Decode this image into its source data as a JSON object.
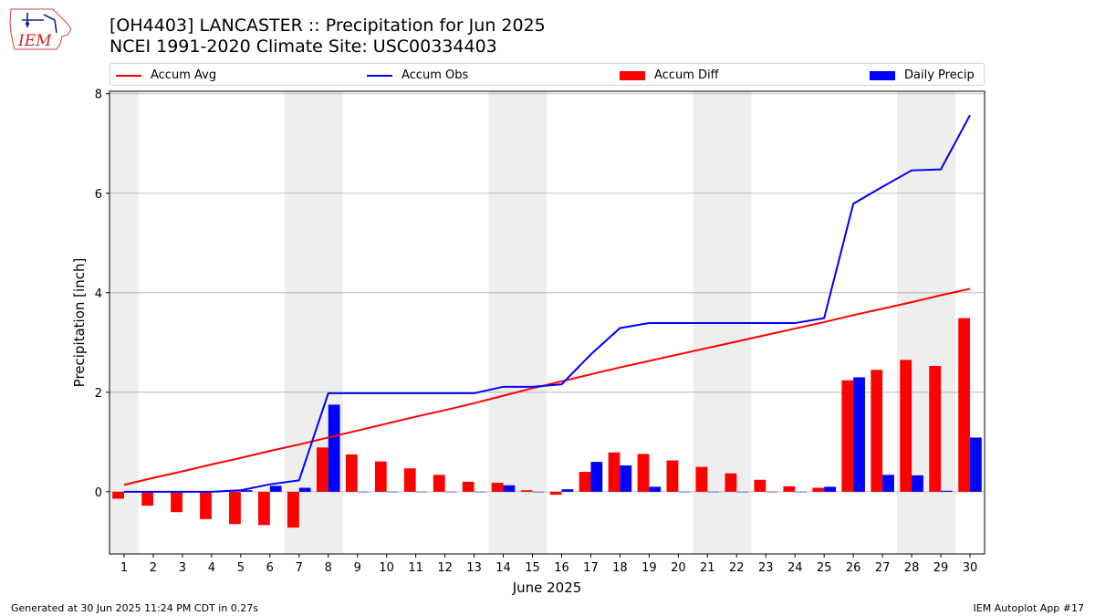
{
  "header": {
    "title_line1": "[OH4403] LANCASTER :: Precipitation for Jun 2025",
    "title_line2": "NCEI 1991-2020 Climate Site: USC00334403"
  },
  "logo": {
    "text": "IEM"
  },
  "footer": {
    "left": "Generated at 30 Jun 2025 11:24 PM CDT in 0.27s",
    "right": "IEM Autoplot App #17"
  },
  "colors": {
    "accum_avg": "#ff0000",
    "accum_obs": "#0000ff",
    "accum_diff": "#ff0000",
    "daily_precip": "#0000ff",
    "weekend_shade": "#eeeeee",
    "grid": "#b0b0b0"
  },
  "chart_data": {
    "type": "bar",
    "xlabel": "June 2025",
    "ylabel": "Precipitation [inch]",
    "ylim": [
      -1.25,
      8.05
    ],
    "yticks": [
      0,
      2,
      4,
      6,
      8
    ],
    "grid": "horizontal",
    "legend_position": "top",
    "x": [
      1,
      2,
      3,
      4,
      5,
      6,
      7,
      8,
      9,
      10,
      11,
      12,
      13,
      14,
      15,
      16,
      17,
      18,
      19,
      20,
      21,
      22,
      23,
      24,
      25,
      26,
      27,
      28,
      29,
      30
    ],
    "shaded_days": [
      [
        1,
        1
      ],
      [
        7,
        8
      ],
      [
        14,
        15
      ],
      [
        21,
        22
      ],
      [
        28,
        29
      ]
    ],
    "series": [
      {
        "name": "Accum Avg",
        "kind": "line",
        "values": [
          0.14,
          0.28,
          0.41,
          0.55,
          0.68,
          0.82,
          0.95,
          1.09,
          1.23,
          1.37,
          1.51,
          1.64,
          1.78,
          1.93,
          2.08,
          2.22,
          2.36,
          2.5,
          2.63,
          2.76,
          2.89,
          3.02,
          3.15,
          3.28,
          3.41,
          3.55,
          3.68,
          3.81,
          3.95,
          4.08
        ]
      },
      {
        "name": "Accum Obs",
        "kind": "line",
        "values": [
          0.0,
          0.0,
          0.0,
          0.0,
          0.03,
          0.15,
          0.23,
          1.98,
          1.98,
          1.98,
          1.98,
          1.98,
          1.98,
          2.11,
          2.11,
          2.16,
          2.76,
          3.29,
          3.39,
          3.39,
          3.39,
          3.39,
          3.39,
          3.39,
          3.49,
          5.79,
          6.13,
          6.46,
          6.48,
          7.57
        ]
      },
      {
        "name": "Accum Diff",
        "kind": "bar",
        "values": [
          -0.14,
          -0.28,
          -0.41,
          -0.55,
          -0.65,
          -0.67,
          -0.72,
          0.89,
          0.75,
          0.61,
          0.47,
          0.34,
          0.2,
          0.18,
          0.03,
          -0.06,
          0.4,
          0.79,
          0.76,
          0.63,
          0.5,
          0.37,
          0.24,
          0.11,
          0.08,
          2.24,
          2.45,
          2.65,
          2.53,
          3.49
        ]
      },
      {
        "name": "Daily Precip",
        "kind": "bar",
        "values": [
          0.0,
          0.0,
          0.0,
          0.0,
          0.03,
          0.12,
          0.08,
          1.75,
          0.0,
          0.0,
          0.0,
          0.0,
          0.0,
          0.13,
          0.0,
          0.05,
          0.6,
          0.53,
          0.1,
          0.0,
          0.0,
          0.0,
          0.0,
          0.0,
          0.1,
          2.3,
          0.34,
          0.33,
          0.02,
          1.09
        ]
      }
    ]
  }
}
